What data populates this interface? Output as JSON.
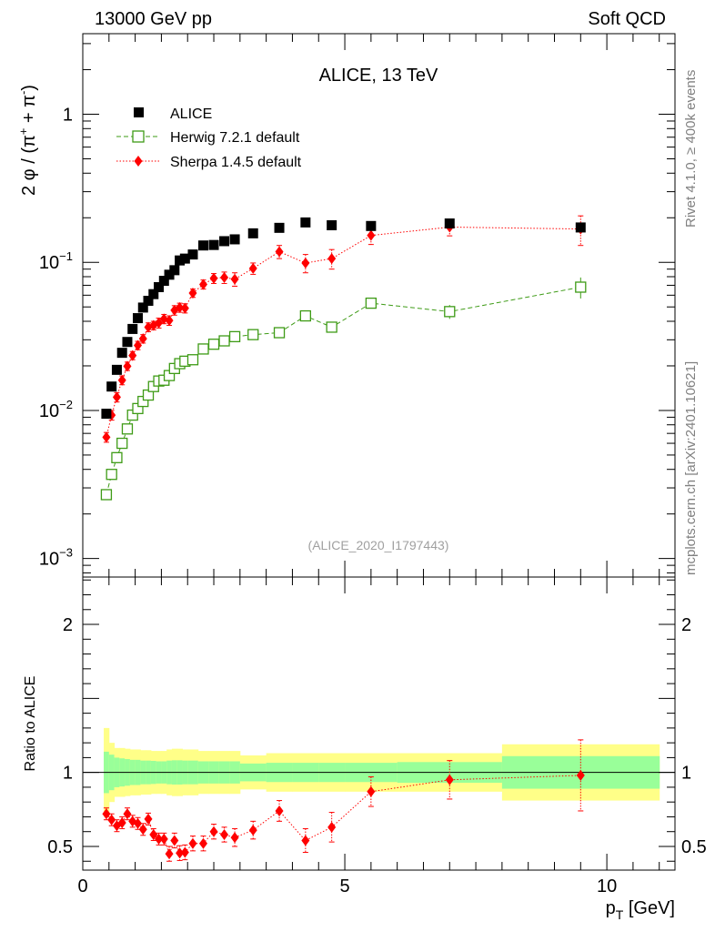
{
  "header": {
    "left": "13000 GeV pp",
    "right": "Soft QCD"
  },
  "side_text": {
    "rivet": "Rivet 4.1.0, ≥ 400k events",
    "mcplots": "mcplots.cern.ch [arXiv:2401.10621]"
  },
  "chart_data": [
    {
      "type": "scatter",
      "panel": "main",
      "title": "ALICE, 13 TeV",
      "watermark": "(ALICE_2020_I1797443)",
      "ylabel": {
        "main": "2 φ / (π",
        "sup1": "+",
        "mid": " + π",
        "sup2": "-",
        "end": ")"
      },
      "yscale": "log",
      "ylim": [
        0.00075,
        3.5
      ],
      "xlim": [
        0,
        11.3
      ],
      "yticks": [
        {
          "v": 0.001,
          "base": "10",
          "exp": "−3"
        },
        {
          "v": 0.01,
          "base": "10",
          "exp": "−2"
        },
        {
          "v": 0.1,
          "base": "10",
          "exp": "−1"
        },
        {
          "v": 1,
          "base": "1",
          "exp": ""
        }
      ],
      "legend": {
        "placement": "top-left",
        "entries": [
          "ALICE",
          "Herwig 7.2.1 default",
          "Sherpa 1.4.5 default"
        ]
      },
      "x": [
        0.45,
        0.55,
        0.65,
        0.75,
        0.85,
        0.95,
        1.05,
        1.15,
        1.25,
        1.35,
        1.45,
        1.55,
        1.65,
        1.75,
        1.85,
        1.95,
        2.1,
        2.3,
        2.5,
        2.7,
        2.9,
        3.25,
        3.75,
        4.25,
        4.75,
        5.5,
        7.0,
        9.5
      ],
      "series": [
        {
          "name": "ALICE",
          "color": "#000000",
          "values": [
            0.0095,
            0.0145,
            0.0188,
            0.0245,
            0.029,
            0.0355,
            0.042,
            0.0495,
            0.055,
            0.061,
            0.068,
            0.075,
            0.0825,
            0.0885,
            0.103,
            0.106,
            0.113,
            0.13,
            0.131,
            0.139,
            0.143,
            0.157,
            0.171,
            0.186,
            0.178,
            0.176,
            0.183,
            0.172
          ]
        },
        {
          "name": "Herwig 7.2.1 default",
          "color": "#3e9b16",
          "values": [
            0.0027,
            0.0037,
            0.0048,
            0.006,
            0.0075,
            0.0093,
            0.0103,
            0.0115,
            0.0127,
            0.0145,
            0.0158,
            0.016,
            0.0172,
            0.0192,
            0.0207,
            0.0215,
            0.022,
            0.026,
            0.028,
            0.0295,
            0.0315,
            0.0325,
            0.0335,
            0.0435,
            0.0365,
            0.053,
            0.0465,
            0.068
          ],
          "errors": [
            0,
            0,
            0,
            0,
            0,
            0,
            0,
            0,
            0,
            0,
            0,
            0,
            0,
            0,
            0,
            0,
            0,
            0,
            0,
            0,
            0,
            0,
            0,
            0.003,
            0.003,
            0.004,
            0.005,
            0.011
          ]
        },
        {
          "name": "Sherpa 1.4.5 default",
          "color": "#ff0000",
          "values": [
            0.0066,
            0.0093,
            0.0123,
            0.016,
            0.0199,
            0.0235,
            0.0275,
            0.0305,
            0.0365,
            0.0375,
            0.039,
            0.0415,
            0.0405,
            0.0475,
            0.0495,
            0.049,
            0.062,
            0.071,
            0.078,
            0.079,
            0.077,
            0.091,
            0.118,
            0.099,
            0.106,
            0.152,
            0.173,
            0.168
          ],
          "errors": [
            0.0005,
            0.0007,
            0.0009,
            0.0011,
            0.0013,
            0.0015,
            0.0018,
            0.002,
            0.0025,
            0.0025,
            0.003,
            0.003,
            0.003,
            0.0035,
            0.0035,
            0.0035,
            0.004,
            0.005,
            0.006,
            0.007,
            0.008,
            0.008,
            0.012,
            0.014,
            0.016,
            0.02,
            0.022,
            0.038
          ]
        }
      ]
    },
    {
      "type": "scatter",
      "panel": "ratio",
      "ylabel": "Ratio to ALICE",
      "xlabel": "p",
      "xlabel_sub": "T",
      "xlabel_unit": " [GeV]",
      "ylim": [
        0.34,
        2.32
      ],
      "xlim": [
        0,
        11.3
      ],
      "yticks": [
        {
          "v": 0.5,
          "label": "0.5"
        },
        {
          "v": 1,
          "label": "1"
        },
        {
          "v": 2,
          "label": "2"
        }
      ],
      "xticks": [
        {
          "v": 0,
          "label": "0"
        },
        {
          "v": 5,
          "label": "5"
        },
        {
          "v": 10,
          "label": "10"
        }
      ],
      "bands": {
        "edges": [
          0.4,
          0.5,
          0.6,
          0.7,
          0.8,
          0.9,
          1.0,
          1.1,
          1.2,
          1.3,
          1.4,
          1.5,
          1.6,
          1.7,
          1.8,
          1.9,
          2.0,
          2.2,
          2.4,
          2.6,
          2.8,
          3.0,
          3.5,
          4.0,
          4.5,
          5.0,
          6.0,
          8.0,
          11.0
        ],
        "stat": [
          0.14,
          0.12,
          0.1,
          0.095,
          0.09,
          0.085,
          0.085,
          0.08,
          0.08,
          0.078,
          0.075,
          0.075,
          0.08,
          0.082,
          0.082,
          0.08,
          0.08,
          0.075,
          0.075,
          0.075,
          0.075,
          0.06,
          0.065,
          0.065,
          0.065,
          0.065,
          0.07,
          0.11,
          0.11
        ],
        "syst": [
          0.3,
          0.2,
          0.165,
          0.165,
          0.16,
          0.155,
          0.155,
          0.15,
          0.15,
          0.145,
          0.145,
          0.145,
          0.155,
          0.16,
          0.16,
          0.155,
          0.155,
          0.145,
          0.145,
          0.145,
          0.145,
          0.115,
          0.13,
          0.13,
          0.13,
          0.13,
          0.13,
          0.19,
          0.19
        ],
        "stat_color": "#99ff99",
        "syst_color": "#ffff88"
      },
      "series": [
        {
          "name": "Sherpa 1.4.5 default / ALICE",
          "color": "#ff0000",
          "x": [
            0.45,
            0.55,
            0.65,
            0.75,
            0.85,
            0.95,
            1.05,
            1.15,
            1.25,
            1.35,
            1.45,
            1.55,
            1.65,
            1.75,
            1.85,
            1.95,
            2.1,
            2.3,
            2.5,
            2.7,
            2.9,
            3.25,
            3.75,
            4.25,
            4.75,
            5.5,
            7.0,
            9.5
          ],
          "values": [
            0.72,
            0.68,
            0.64,
            0.66,
            0.72,
            0.67,
            0.655,
            0.615,
            0.685,
            0.58,
            0.55,
            0.55,
            0.45,
            0.54,
            0.455,
            0.46,
            0.52,
            0.52,
            0.6,
            0.58,
            0.56,
            0.61,
            0.74,
            0.54,
            0.63,
            0.87,
            0.95,
            0.98
          ],
          "errors": [
            0.04,
            0.04,
            0.04,
            0.04,
            0.04,
            0.04,
            0.04,
            0.04,
            0.04,
            0.04,
            0.04,
            0.04,
            0.05,
            0.05,
            0.05,
            0.05,
            0.05,
            0.05,
            0.05,
            0.05,
            0.06,
            0.06,
            0.07,
            0.08,
            0.1,
            0.1,
            0.13,
            0.24
          ]
        }
      ]
    }
  ]
}
